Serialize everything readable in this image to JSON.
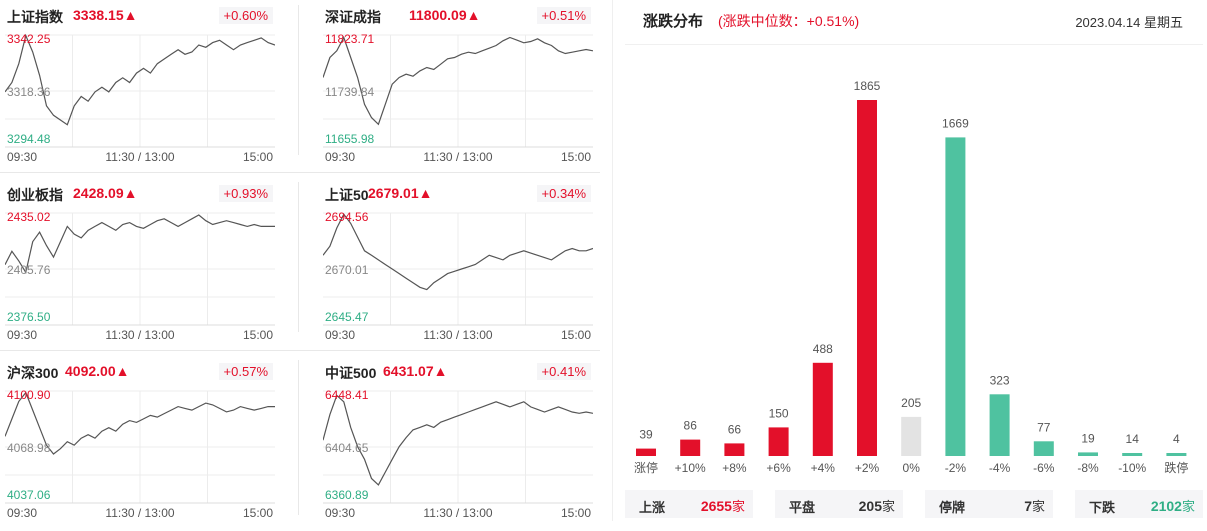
{
  "mini_charts": [
    {
      "name": "上证指数",
      "value": "3338.15▲",
      "change": "+0.60%",
      "y_top": "3342.25",
      "y_mid": "3318.36",
      "y_bot": "3294.48",
      "x_labels": [
        "09:30",
        "11:30 / 13:00",
        "15:00"
      ],
      "series": [
        3318,
        3322,
        3330,
        3342,
        3335,
        3325,
        3312,
        3308,
        3306,
        3304,
        3312,
        3316,
        3314,
        3318,
        3320,
        3318,
        3322,
        3324,
        3322,
        3326,
        3328,
        3326,
        3330,
        3332,
        3334,
        3336,
        3334,
        3335,
        3338,
        3337,
        3339,
        3340,
        3338,
        3336,
        3338,
        3339,
        3340,
        3341,
        3339,
        3338
      ]
    },
    {
      "name": "深证成指",
      "value": "11800.09▲",
      "change": "+0.51%",
      "y_top": "11823.71",
      "y_mid": "11739.84",
      "y_bot": "11655.98",
      "x_labels": [
        "09:30",
        "11:30 / 13:00",
        "15:00"
      ],
      "series": [
        11760,
        11790,
        11800,
        11820,
        11790,
        11760,
        11720,
        11700,
        11690,
        11720,
        11750,
        11760,
        11765,
        11762,
        11770,
        11775,
        11772,
        11780,
        11788,
        11790,
        11795,
        11798,
        11796,
        11800,
        11804,
        11808,
        11815,
        11820,
        11816,
        11812,
        11814,
        11818,
        11812,
        11808,
        11800,
        11796,
        11798,
        11800,
        11802,
        11800
      ]
    },
    {
      "name": "创业板指",
      "value": "2428.09▲",
      "change": "+0.93%",
      "y_top": "2435.02",
      "y_mid": "2405.76",
      "y_bot": "2376.50",
      "x_labels": [
        "09:30",
        "11:30 / 13:00",
        "15:00"
      ],
      "series": [
        2408,
        2415,
        2410,
        2404,
        2420,
        2425,
        2418,
        2412,
        2420,
        2428,
        2424,
        2422,
        2426,
        2428,
        2430,
        2428,
        2426,
        2429,
        2430,
        2428,
        2427,
        2429,
        2431,
        2432,
        2430,
        2428,
        2430,
        2432,
        2434,
        2431,
        2429,
        2430,
        2431,
        2430,
        2429,
        2428,
        2429,
        2428,
        2428,
        2428
      ]
    },
    {
      "name": "上证50",
      "value": "2679.01▲",
      "change": "+0.34%",
      "y_top": "2694.56",
      "y_mid": "2670.01",
      "y_bot": "2645.47",
      "x_labels": [
        "09:30",
        "11:30 / 13:00",
        "15:00"
      ],
      "series": [
        2676,
        2680,
        2688,
        2694,
        2690,
        2684,
        2678,
        2676,
        2674,
        2672,
        2670,
        2668,
        2666,
        2664,
        2662,
        2661,
        2664,
        2666,
        2668,
        2669,
        2670,
        2671,
        2672,
        2674,
        2676,
        2675,
        2674,
        2676,
        2677,
        2678,
        2677,
        2676,
        2675,
        2674,
        2676,
        2678,
        2679,
        2678,
        2678,
        2679
      ]
    },
    {
      "name": "沪深300",
      "value": "4092.00▲",
      "change": "+0.57%",
      "y_top": "4100.90",
      "y_mid": "4068.98",
      "y_bot": "4037.06",
      "x_labels": [
        "09:30",
        "11:30 / 13:00",
        "15:00"
      ],
      "series": [
        4075,
        4085,
        4095,
        4100,
        4090,
        4080,
        4070,
        4065,
        4068,
        4072,
        4070,
        4074,
        4076,
        4074,
        4078,
        4080,
        4078,
        4082,
        4084,
        4083,
        4085,
        4087,
        4086,
        4088,
        4090,
        4092,
        4091,
        4090,
        4092,
        4094,
        4093,
        4091,
        4089,
        4090,
        4092,
        4091,
        4090,
        4091,
        4092,
        4092
      ]
    },
    {
      "name": "中证500",
      "value": "6431.07▲",
      "change": "+0.41%",
      "y_top": "6448.41",
      "y_mid": "6404.65",
      "y_bot": "6360.89",
      "x_labels": [
        "09:30",
        "11:30 / 13:00",
        "15:00"
      ],
      "series": [
        6410,
        6430,
        6445,
        6440,
        6420,
        6405,
        6395,
        6380,
        6375,
        6385,
        6395,
        6405,
        6412,
        6418,
        6420,
        6422,
        6420,
        6424,
        6426,
        6428,
        6430,
        6432,
        6434,
        6436,
        6438,
        6440,
        6438,
        6436,
        6438,
        6440,
        6436,
        6434,
        6432,
        6434,
        6436,
        6434,
        6432,
        6431,
        6432,
        6431
      ]
    }
  ],
  "distribution": {
    "title": "涨跌分布",
    "subtitle": "(涨跌中位数：+0.51%)",
    "date": "2023.04.14 星期五"
  },
  "footer": {
    "up": {
      "label": "上涨",
      "value": "2655",
      "unit": "家"
    },
    "flat": {
      "label": "平盘",
      "value": "205",
      "unit": "家"
    },
    "suspend": {
      "label": "停牌",
      "value": "7",
      "unit": "家"
    },
    "down": {
      "label": "下跌",
      "value": "2102",
      "unit": "家"
    }
  },
  "colors": {
    "up": "#e3102a",
    "down": "#4fc2a0",
    "flat": "#e3e3e3"
  },
  "chart_data": {
    "type": "bar",
    "title": "涨跌分布",
    "categories": [
      "涨停",
      "+10%",
      "+8%",
      "+6%",
      "+4%",
      "+2%",
      "0%",
      "-2%",
      "-4%",
      "-6%",
      "-8%",
      "-10%",
      "跌停"
    ],
    "values": [
      39,
      86,
      66,
      150,
      488,
      1865,
      205,
      1669,
      323,
      77,
      19,
      14,
      4
    ],
    "bar_colors": [
      "up",
      "up",
      "up",
      "up",
      "up",
      "up",
      "flat",
      "down",
      "down",
      "down",
      "down",
      "down",
      "down"
    ],
    "ylim": [
      0,
      1865
    ]
  }
}
